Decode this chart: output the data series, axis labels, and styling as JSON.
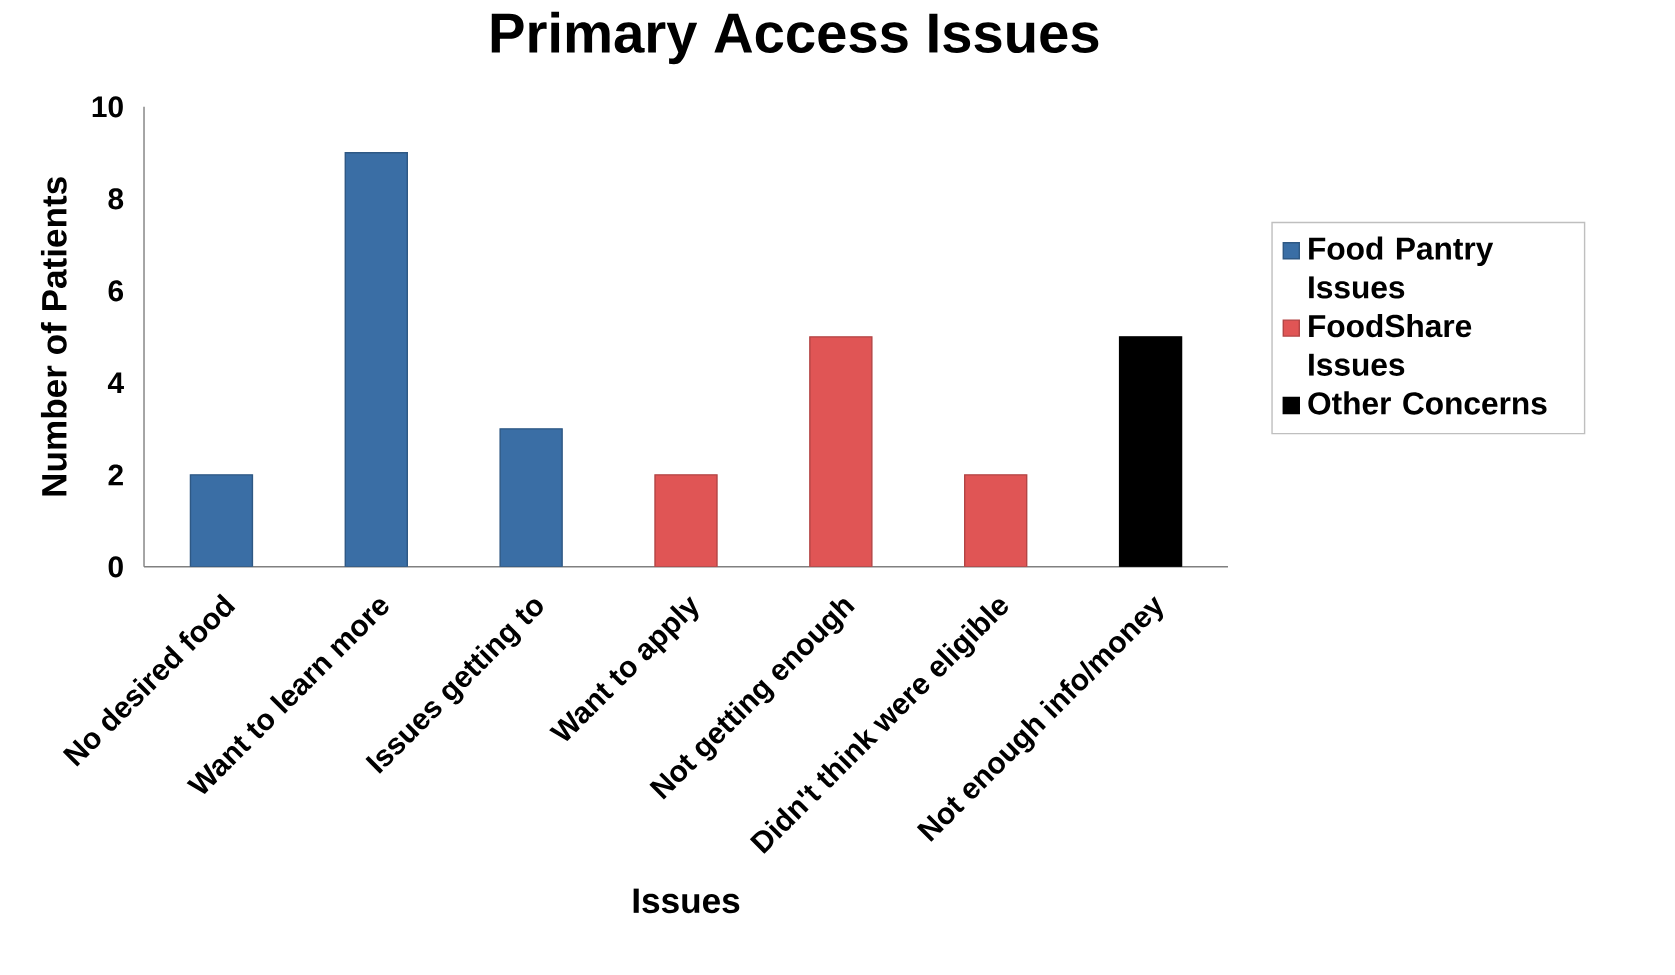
{
  "chart_data": {
    "type": "bar",
    "title": "Primary Access Issues",
    "xlabel": "Issues",
    "ylabel": "Number of Patients",
    "categories": [
      "No desired food",
      "Want to learn more",
      "Issues getting to",
      "Want to apply",
      "Not getting enough",
      "Didn't think were eligible",
      "Not enough info/money"
    ],
    "series": [
      {
        "name": "Food Pantry Issues",
        "color": "#3a6ea5",
        "values": [
          2,
          9,
          3,
          null,
          null,
          null,
          null
        ]
      },
      {
        "name": "FoodShare Issues",
        "color": "#e05555",
        "values": [
          null,
          null,
          null,
          2,
          5,
          2,
          null
        ]
      },
      {
        "name": "Other Concerns",
        "color": "#000000",
        "values": [
          null,
          null,
          null,
          null,
          null,
          null,
          5
        ]
      }
    ],
    "ylim": [
      0,
      10
    ],
    "yticks": [
      0,
      2,
      4,
      6,
      8,
      10
    ],
    "legend": "right",
    "grid": false
  }
}
